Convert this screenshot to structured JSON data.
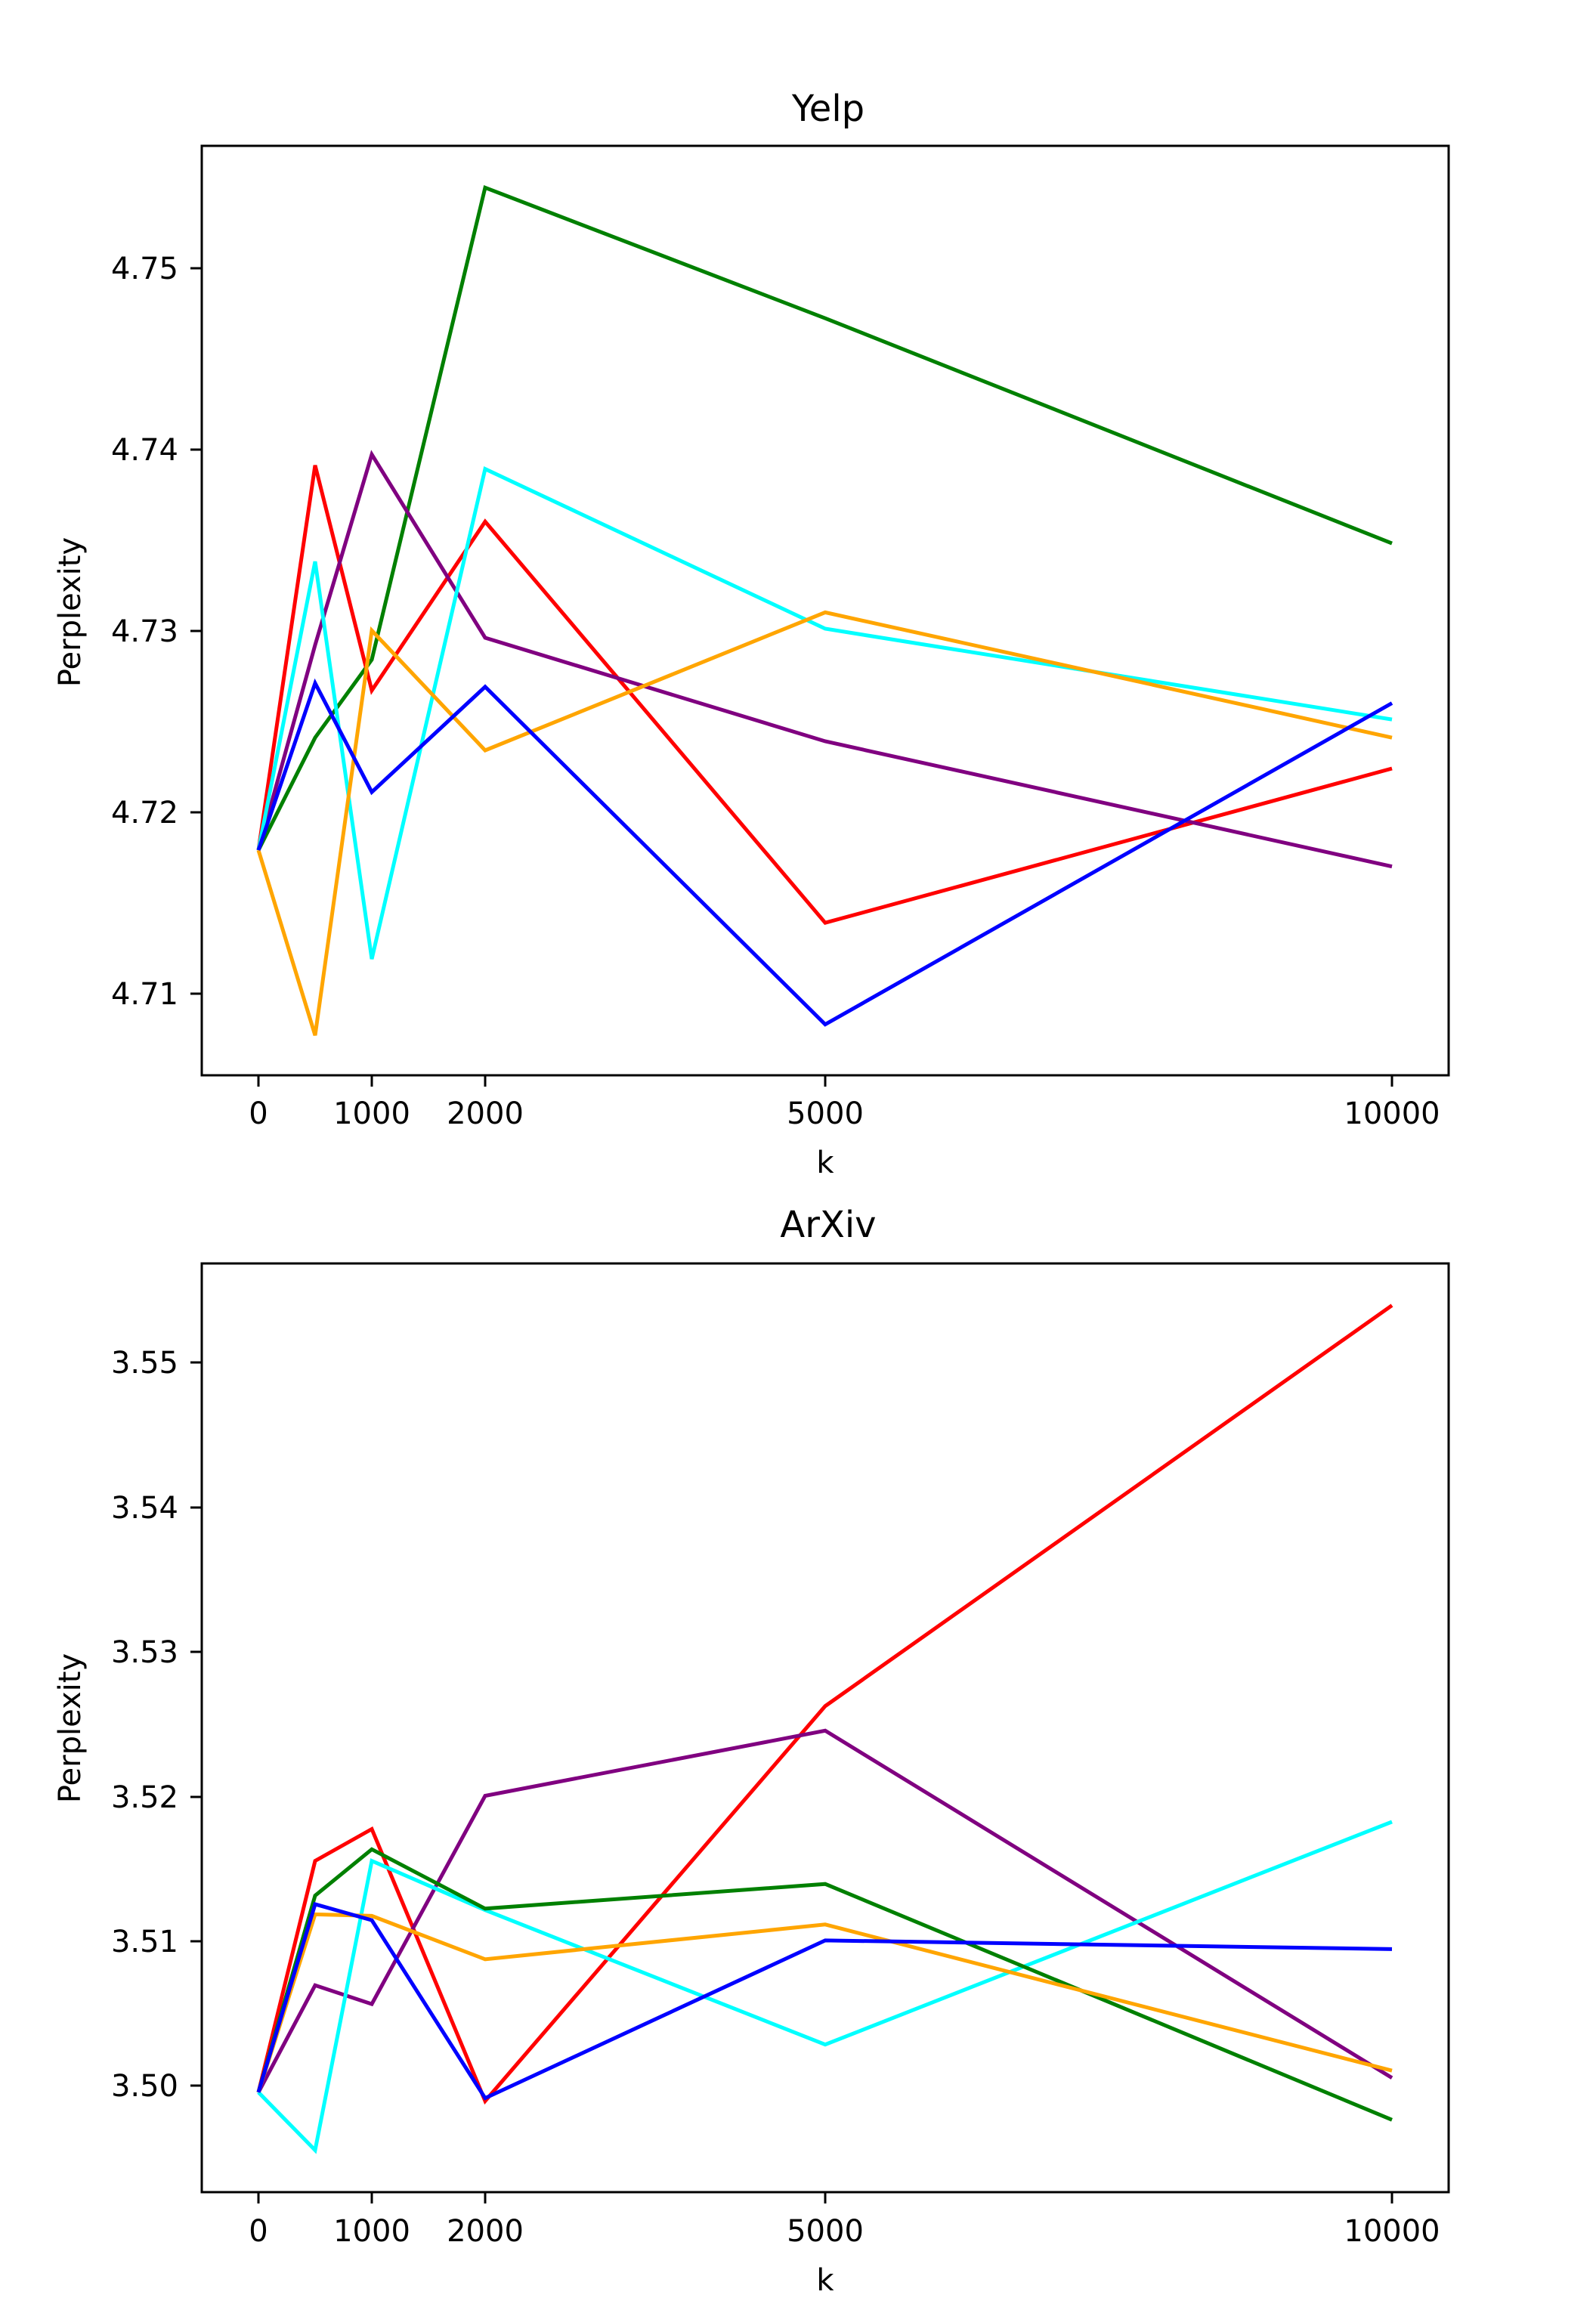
{
  "chart_data": [
    {
      "type": "line",
      "title": "Yelp",
      "xlabel": "k",
      "ylabel": "Perplexity",
      "x": [
        0,
        500,
        1000,
        2000,
        5000,
        10000
      ],
      "xticks": [
        0,
        1000,
        2000,
        5000,
        10000
      ],
      "xtick_labels": [
        "0",
        "1000",
        "2000",
        "5000",
        "10000"
      ],
      "yticks": [
        4.71,
        4.72,
        4.73,
        4.74,
        4.75
      ],
      "ytick_labels": [
        "4.71",
        "4.72",
        "4.73",
        "4.74",
        "4.75"
      ],
      "xlim": [
        -500,
        10500
      ],
      "ylim": [
        4.7055,
        4.7567
      ],
      "grid": false,
      "series": [
        {
          "name": "green",
          "color": "#008000",
          "values": [
            4.7179,
            4.7241,
            4.7284,
            4.7544,
            4.7472,
            4.7348
          ]
        },
        {
          "name": "red",
          "color": "#ff0000",
          "values": [
            4.7179,
            4.7391,
            4.7267,
            4.736,
            4.7139,
            4.7224
          ]
        },
        {
          "name": "purple",
          "color": "#800080",
          "values": [
            4.7179,
            4.7292,
            4.7397,
            4.7296,
            4.7239,
            4.717
          ]
        },
        {
          "name": "cyan",
          "color": "#00ffff",
          "values": [
            4.7179,
            4.7338,
            4.7119,
            4.7389,
            4.7301,
            4.7251
          ]
        },
        {
          "name": "orange",
          "color": "#ffa500",
          "values": [
            4.7179,
            4.7077,
            4.73,
            4.7234,
            4.731,
            4.7241
          ]
        },
        {
          "name": "blue",
          "color": "#0000ff",
          "values": [
            4.7179,
            4.7271,
            4.7211,
            4.7269,
            4.7083,
            4.726
          ]
        }
      ]
    },
    {
      "type": "line",
      "title": "ArXiv",
      "xlabel": "k",
      "ylabel": "Perplexity",
      "x": [
        0,
        500,
        1000,
        2000,
        5000,
        10000
      ],
      "xticks": [
        0,
        1000,
        2000,
        5000,
        10000
      ],
      "xtick_labels": [
        "0",
        "1000",
        "2000",
        "5000",
        "10000"
      ],
      "yticks": [
        3.5,
        3.51,
        3.52,
        3.53,
        3.54,
        3.55
      ],
      "ytick_labels": [
        "3.50",
        "3.51",
        "3.52",
        "3.53",
        "3.54",
        "3.55"
      ],
      "xlim": [
        -500,
        10500
      ],
      "ylim": [
        3.4926,
        3.5568
      ],
      "grid": false,
      "series": [
        {
          "name": "red",
          "color": "#ff0000",
          "values": [
            3.4995,
            3.5155,
            3.5177,
            3.4989,
            3.5262,
            3.5539
          ]
        },
        {
          "name": "purple",
          "color": "#800080",
          "values": [
            3.4995,
            3.5069,
            3.5056,
            3.52,
            3.5245,
            3.5005
          ]
        },
        {
          "name": "cyan",
          "color": "#00ffff",
          "values": [
            3.4995,
            3.4955,
            3.5155,
            3.5121,
            3.5028,
            3.5182
          ]
        },
        {
          "name": "green",
          "color": "#008000",
          "values": [
            3.4995,
            3.5131,
            3.5163,
            3.5122,
            3.5139,
            3.4976
          ]
        },
        {
          "name": "orange",
          "color": "#ffa500",
          "values": [
            3.4995,
            3.5118,
            3.5117,
            3.5087,
            3.5111,
            3.501
          ]
        },
        {
          "name": "blue",
          "color": "#0000ff",
          "values": [
            3.4995,
            3.5125,
            3.5114,
            3.4991,
            3.51,
            3.5094
          ]
        }
      ]
    }
  ]
}
